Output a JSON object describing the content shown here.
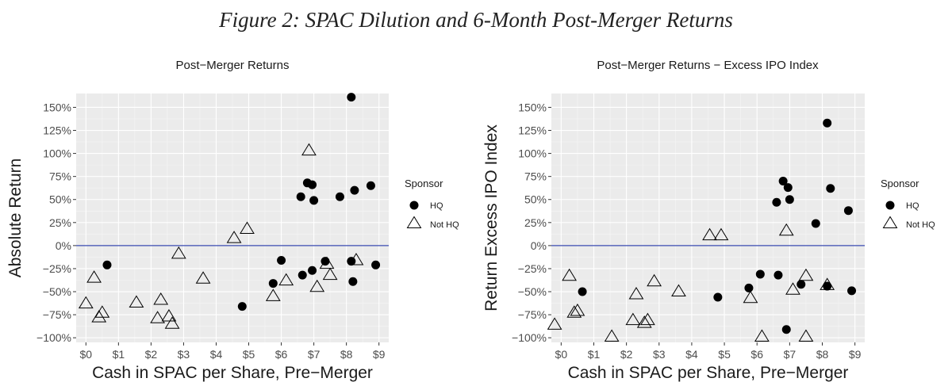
{
  "figure_title": "Figure 2: SPAC Dilution and 6-Month Post-Merger Returns",
  "colors": {
    "panel": "#ebebeb",
    "grid_major": "#ffffff",
    "zero_line": "#3a4bb0",
    "point": "#000000"
  },
  "chart_data": [
    {
      "type": "scatter",
      "title": "Post−Merger Returns",
      "xlabel": "Cash in SPAC per Share, Pre−Merger",
      "ylabel": "Absolute Return",
      "xlim": [
        -0.3,
        9.3
      ],
      "ylim": [
        -1.05,
        1.65
      ],
      "x_ticks": [
        {
          "v": 0,
          "label": "$0"
        },
        {
          "v": 1,
          "label": "$1"
        },
        {
          "v": 2,
          "label": "$2"
        },
        {
          "v": 3,
          "label": "$3"
        },
        {
          "v": 4,
          "label": "$4"
        },
        {
          "v": 5,
          "label": "$5"
        },
        {
          "v": 6,
          "label": "$6"
        },
        {
          "v": 7,
          "label": "$7"
        },
        {
          "v": 8,
          "label": "$8"
        },
        {
          "v": 9,
          "label": "$9"
        }
      ],
      "y_ticks": [
        {
          "v": 1.5,
          "label": "150%"
        },
        {
          "v": 1.25,
          "label": "125%"
        },
        {
          "v": 1.0,
          "label": "100%"
        },
        {
          "v": 0.75,
          "label": "75%"
        },
        {
          "v": 0.5,
          "label": "50%"
        },
        {
          "v": 0.25,
          "label": "25%"
        },
        {
          "v": 0,
          "label": "0%"
        },
        {
          "v": -0.25,
          "label": "−25%"
        },
        {
          "v": -0.5,
          "label": "−50%"
        },
        {
          "v": -0.75,
          "label": "−75%"
        },
        {
          "v": -1.0,
          "label": "−100%"
        }
      ],
      "hline": 0,
      "legend": {
        "title": "Sponsor",
        "position": "right",
        "entries": [
          "HQ",
          "Not HQ"
        ]
      },
      "series": [
        {
          "name": "HQ",
          "marker": "circle",
          "points": [
            [
              0.65,
              -0.21
            ],
            [
              4.8,
              -0.66
            ],
            [
              5.75,
              -0.41
            ],
            [
              6.0,
              -0.16
            ],
            [
              6.6,
              0.53
            ],
            [
              6.65,
              -0.32
            ],
            [
              6.8,
              0.68
            ],
            [
              6.95,
              0.66
            ],
            [
              6.95,
              -0.27
            ],
            [
              7.0,
              0.49
            ],
            [
              7.35,
              -0.17
            ],
            [
              7.8,
              0.53
            ],
            [
              8.15,
              1.61
            ],
            [
              8.15,
              -0.17
            ],
            [
              8.2,
              -0.39
            ],
            [
              8.25,
              0.6
            ],
            [
              8.75,
              0.65
            ],
            [
              8.9,
              -0.21
            ]
          ]
        },
        {
          "name": "Not HQ",
          "marker": "triangle",
          "points": [
            [
              0.0,
              -0.63
            ],
            [
              0.25,
              -0.35
            ],
            [
              0.4,
              -0.78
            ],
            [
              0.5,
              -0.73
            ],
            [
              1.55,
              -0.62
            ],
            [
              2.2,
              -0.79
            ],
            [
              2.3,
              -0.59
            ],
            [
              2.55,
              -0.77
            ],
            [
              2.65,
              -0.85
            ],
            [
              2.85,
              -0.09
            ],
            [
              3.6,
              -0.36
            ],
            [
              4.55,
              0.08
            ],
            [
              4.95,
              0.18
            ],
            [
              5.75,
              -0.55
            ],
            [
              6.15,
              -0.38
            ],
            [
              6.85,
              1.03
            ],
            [
              7.1,
              -0.45
            ],
            [
              7.4,
              -0.2
            ],
            [
              7.5,
              -0.32
            ],
            [
              8.3,
              -0.16
            ]
          ]
        }
      ]
    },
    {
      "type": "scatter",
      "title": "Post−Merger Returns − Excess IPO Index",
      "xlabel": "Cash in SPAC per Share, Pre−Merger",
      "ylabel": "Return Excess IPO Index",
      "xlim": [
        -0.3,
        9.3
      ],
      "ylim": [
        -1.05,
        1.65
      ],
      "x_ticks": [
        {
          "v": 0,
          "label": "$0"
        },
        {
          "v": 1,
          "label": "$1"
        },
        {
          "v": 2,
          "label": "$2"
        },
        {
          "v": 3,
          "label": "$3"
        },
        {
          "v": 4,
          "label": "$4"
        },
        {
          "v": 5,
          "label": "$5"
        },
        {
          "v": 6,
          "label": "$6"
        },
        {
          "v": 7,
          "label": "$7"
        },
        {
          "v": 8,
          "label": "$8"
        },
        {
          "v": 9,
          "label": "$9"
        }
      ],
      "y_ticks": [
        {
          "v": 1.5,
          "label": "150%"
        },
        {
          "v": 1.25,
          "label": "125%"
        },
        {
          "v": 1.0,
          "label": "100%"
        },
        {
          "v": 0.75,
          "label": "75%"
        },
        {
          "v": 0.5,
          "label": "50%"
        },
        {
          "v": 0.25,
          "label": "25%"
        },
        {
          "v": 0,
          "label": "0%"
        },
        {
          "v": -0.25,
          "label": "−25%"
        },
        {
          "v": -0.5,
          "label": "−50%"
        },
        {
          "v": -0.75,
          "label": "−75%"
        },
        {
          "v": -1.0,
          "label": "−100%"
        }
      ],
      "hline": 0,
      "legend": {
        "title": "Sponsor",
        "position": "right",
        "entries": [
          "HQ",
          "Not HQ"
        ]
      },
      "series": [
        {
          "name": "HQ",
          "marker": "circle",
          "points": [
            [
              0.65,
              -0.5
            ],
            [
              4.8,
              -0.56
            ],
            [
              5.75,
              -0.46
            ],
            [
              6.1,
              -0.31
            ],
            [
              6.6,
              0.47
            ],
            [
              6.65,
              -0.32
            ],
            [
              6.8,
              0.7
            ],
            [
              6.9,
              -0.91
            ],
            [
              6.95,
              0.63
            ],
            [
              7.0,
              0.5
            ],
            [
              7.35,
              -0.42
            ],
            [
              7.8,
              0.24
            ],
            [
              8.15,
              1.33
            ],
            [
              8.15,
              -0.44
            ],
            [
              8.25,
              0.62
            ],
            [
              8.8,
              0.38
            ],
            [
              8.9,
              -0.49
            ]
          ]
        },
        {
          "name": "Not HQ",
          "marker": "triangle",
          "points": [
            [
              -0.2,
              -0.86
            ],
            [
              0.25,
              -0.33
            ],
            [
              0.4,
              -0.73
            ],
            [
              0.5,
              -0.71
            ],
            [
              1.55,
              -0.99
            ],
            [
              2.2,
              -0.81
            ],
            [
              2.3,
              -0.53
            ],
            [
              2.55,
              -0.84
            ],
            [
              2.65,
              -0.81
            ],
            [
              2.85,
              -0.39
            ],
            [
              3.6,
              -0.5
            ],
            [
              4.55,
              0.11
            ],
            [
              4.9,
              0.11
            ],
            [
              5.8,
              -0.57
            ],
            [
              6.15,
              -0.99
            ],
            [
              6.9,
              0.16
            ],
            [
              7.1,
              -0.48
            ],
            [
              7.5,
              -0.33
            ],
            [
              7.5,
              -0.99
            ],
            [
              8.15,
              -0.43
            ]
          ]
        }
      ]
    }
  ]
}
